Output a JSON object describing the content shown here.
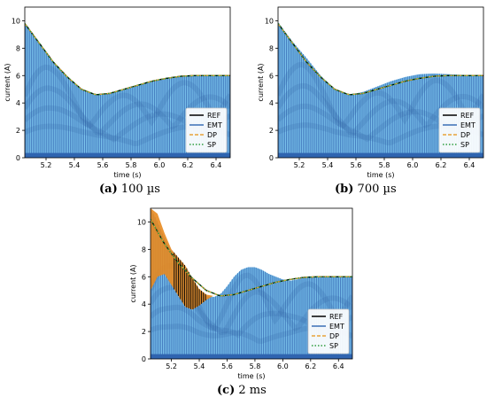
{
  "chart_data": [
    {
      "type": "line",
      "caption_letter": "(a)",
      "caption_text": "100 µs",
      "xlabel": "time (s)",
      "ylabel": "current (A)",
      "xlim": [
        5.05,
        6.5
      ],
      "ylim": [
        0,
        11
      ],
      "xticks": [
        5.2,
        5.4,
        5.6,
        5.8,
        6.0,
        6.2,
        6.4
      ],
      "yticks": [
        0,
        2,
        4,
        6,
        8,
        10
      ],
      "legend_position": "lower-right",
      "grid": false,
      "envelope": {
        "x": [
          5.05,
          5.15,
          5.25,
          5.35,
          5.45,
          5.55,
          5.65,
          5.75,
          5.85,
          5.95,
          6.05,
          6.15,
          6.25,
          6.35,
          6.45,
          6.5
        ],
        "y": [
          9.8,
          8.4,
          7.0,
          5.9,
          5.0,
          4.6,
          4.7,
          5.0,
          5.3,
          5.6,
          5.8,
          5.95,
          6.0,
          6.0,
          6.0,
          6.0
        ]
      },
      "series": [
        {
          "name": "REF",
          "color": "#000000",
          "dash": "solid",
          "x": [
            5.05,
            5.15,
            5.25,
            5.35,
            5.45,
            5.55,
            5.65,
            5.75,
            5.85,
            5.95,
            6.05,
            6.15,
            6.25,
            6.35,
            6.45,
            6.5
          ],
          "y": [
            9.8,
            8.4,
            7.0,
            5.9,
            5.0,
            4.6,
            4.7,
            5.0,
            5.3,
            5.6,
            5.8,
            5.95,
            6.0,
            6.0,
            6.0,
            6.0
          ]
        },
        {
          "name": "EMT",
          "color": "#3b6fb6",
          "dash": "solid",
          "oscillating": true
        },
        {
          "name": "DP",
          "color": "#e8a33a",
          "dash": "dashed",
          "x": [
            5.05,
            5.15,
            5.25,
            5.35,
            5.45,
            5.55,
            5.65,
            5.75,
            5.85,
            5.95,
            6.05,
            6.15,
            6.25,
            6.35,
            6.45,
            6.5
          ],
          "y": [
            9.8,
            8.4,
            7.0,
            5.9,
            5.0,
            4.6,
            4.7,
            5.0,
            5.3,
            5.6,
            5.8,
            5.95,
            6.0,
            6.0,
            6.0,
            6.0
          ]
        },
        {
          "name": "SP",
          "color": "#2e9e3e",
          "dash": "dotted",
          "x": [
            5.05,
            5.15,
            5.25,
            5.35,
            5.45,
            5.55,
            5.65,
            5.75,
            5.85,
            5.95,
            6.05,
            6.15,
            6.25,
            6.35,
            6.45,
            6.5
          ],
          "y": [
            9.8,
            8.4,
            7.0,
            5.9,
            5.0,
            4.6,
            4.7,
            5.0,
            5.3,
            5.6,
            5.8,
            5.95,
            6.0,
            6.0,
            6.0,
            6.0
          ]
        }
      ]
    },
    {
      "type": "line",
      "caption_letter": "(b)",
      "caption_text": "700 µs",
      "xlabel": "time (s)",
      "ylabel": "current (A)",
      "xlim": [
        5.05,
        6.5
      ],
      "ylim": [
        0,
        11
      ],
      "xticks": [
        5.2,
        5.4,
        5.6,
        5.8,
        6.0,
        6.2,
        6.4
      ],
      "yticks": [
        0,
        2,
        4,
        6,
        8,
        10
      ],
      "legend_position": "lower-right",
      "grid": false,
      "envelope": {
        "x": [
          5.05,
          5.15,
          5.25,
          5.35,
          5.45,
          5.55,
          5.65,
          5.75,
          5.85,
          5.95,
          6.05,
          6.15,
          6.25,
          6.35,
          6.45,
          6.5
        ],
        "y": [
          9.9,
          8.5,
          7.3,
          6.0,
          5.0,
          4.6,
          4.8,
          5.2,
          5.6,
          5.9,
          6.1,
          6.15,
          6.1,
          6.05,
          6.0,
          6.0
        ]
      },
      "series": [
        {
          "name": "REF",
          "color": "#000000",
          "dash": "solid",
          "x": [
            5.05,
            5.15,
            5.25,
            5.35,
            5.45,
            5.55,
            5.65,
            5.75,
            5.85,
            5.95,
            6.05,
            6.15,
            6.25,
            6.35,
            6.45,
            6.5
          ],
          "y": [
            9.8,
            8.4,
            7.0,
            5.9,
            5.0,
            4.6,
            4.7,
            5.0,
            5.3,
            5.6,
            5.8,
            5.95,
            6.0,
            6.0,
            6.0,
            6.0
          ]
        },
        {
          "name": "EMT",
          "color": "#3b6fb6",
          "dash": "solid",
          "oscillating": true
        },
        {
          "name": "DP",
          "color": "#e8a33a",
          "dash": "dashed",
          "x": [
            5.05,
            5.15,
            5.25,
            5.35,
            5.45,
            5.55,
            5.65,
            5.75,
            5.85,
            5.95,
            6.05,
            6.15,
            6.25,
            6.35,
            6.45,
            6.5
          ],
          "y": [
            9.8,
            8.4,
            7.0,
            5.9,
            5.0,
            4.6,
            4.7,
            5.0,
            5.3,
            5.6,
            5.8,
            5.95,
            6.0,
            6.0,
            6.0,
            6.0
          ]
        },
        {
          "name": "SP",
          "color": "#2e9e3e",
          "dash": "dotted",
          "x": [
            5.05,
            5.15,
            5.25,
            5.35,
            5.45,
            5.55,
            5.65,
            5.75,
            5.85,
            5.95,
            6.05,
            6.15,
            6.25,
            6.35,
            6.45,
            6.5
          ],
          "y": [
            9.8,
            8.4,
            7.0,
            5.9,
            5.0,
            4.6,
            4.7,
            5.0,
            5.3,
            5.6,
            5.8,
            5.95,
            6.0,
            6.0,
            6.0,
            6.0
          ]
        }
      ]
    },
    {
      "type": "line",
      "caption_letter": "(c)",
      "caption_text": "2 ms",
      "xlabel": "time (s)",
      "ylabel": "current (A)",
      "xlim": [
        5.05,
        6.5
      ],
      "ylim": [
        0,
        11
      ],
      "xticks": [
        5.2,
        5.4,
        5.6,
        5.8,
        6.0,
        6.2,
        6.4
      ],
      "yticks": [
        0,
        2,
        4,
        6,
        8,
        10
      ],
      "legend_position": "lower-right",
      "grid": false,
      "envelope": {
        "x": [
          5.05,
          5.1,
          5.15,
          5.2,
          5.25,
          5.3,
          5.35,
          5.4,
          5.45,
          5.5,
          5.55,
          5.6,
          5.65,
          5.7,
          5.75,
          5.8,
          5.85,
          5.9,
          5.95,
          6.0,
          6.05,
          6.1,
          6.15,
          6.2,
          6.3,
          6.4,
          6.5
        ],
        "y": [
          11.0,
          10.0,
          8.8,
          7.9,
          7.3,
          6.6,
          5.8,
          5.0,
          4.6,
          4.5,
          4.7,
          5.3,
          6.0,
          6.5,
          6.7,
          6.7,
          6.5,
          6.2,
          6.0,
          5.8,
          5.7,
          5.8,
          5.9,
          6.0,
          6.0,
          6.0,
          6.0
        ]
      },
      "series": [
        {
          "name": "REF",
          "color": "#000000",
          "dash": "solid",
          "x": [
            5.05,
            5.15,
            5.25,
            5.35,
            5.45,
            5.55,
            5.65,
            5.75,
            5.85,
            5.95,
            6.05,
            6.15,
            6.25,
            6.35,
            6.45,
            6.5
          ],
          "y": [
            10.2,
            8.4,
            7.0,
            5.9,
            5.0,
            4.6,
            4.7,
            5.0,
            5.3,
            5.6,
            5.8,
            5.95,
            6.0,
            6.0,
            6.0,
            6.0
          ]
        },
        {
          "name": "EMT",
          "color": "#3b6fb6",
          "dash": "solid",
          "oscillating": true
        },
        {
          "name": "DP",
          "color": "#e8a33a",
          "dash": "dashed",
          "x": [
            5.05,
            5.15,
            5.25,
            5.35,
            5.45,
            5.55,
            5.65,
            5.75,
            5.85,
            5.95,
            6.05,
            6.15,
            6.25,
            6.35,
            6.45,
            6.5
          ],
          "y": [
            10.2,
            8.4,
            7.0,
            5.9,
            5.0,
            4.6,
            4.7,
            5.0,
            5.3,
            5.6,
            5.8,
            5.95,
            6.0,
            6.0,
            6.0,
            6.0
          ]
        },
        {
          "name": "SP",
          "color": "#2e9e3e",
          "dash": "dotted",
          "x": [
            5.05,
            5.15,
            5.25,
            5.35,
            5.45,
            5.55,
            5.65,
            5.75,
            5.85,
            5.95,
            6.05,
            6.15,
            6.25,
            6.35,
            6.45,
            6.5
          ],
          "y": [
            10.2,
            8.4,
            7.0,
            5.9,
            5.0,
            4.6,
            4.7,
            5.0,
            5.3,
            5.6,
            5.8,
            5.95,
            6.0,
            6.0,
            6.0,
            6.0
          ]
        }
      ]
    }
  ]
}
